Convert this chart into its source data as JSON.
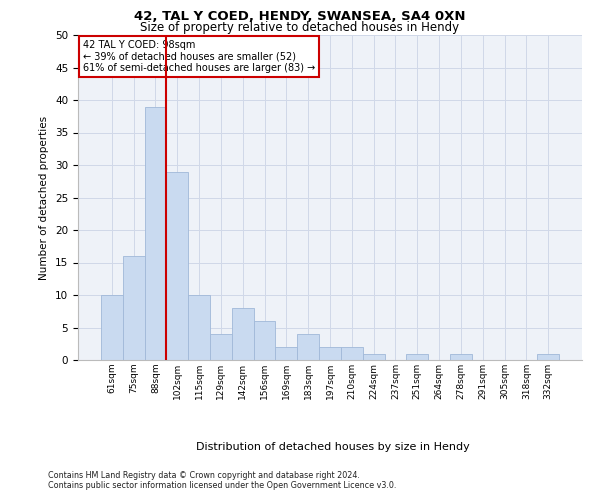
{
  "title1": "42, TAL Y COED, HENDY, SWANSEA, SA4 0XN",
  "title2": "Size of property relative to detached houses in Hendy",
  "xlabel": "Distribution of detached houses by size in Hendy",
  "ylabel": "Number of detached properties",
  "categories": [
    "61sqm",
    "75sqm",
    "88sqm",
    "102sqm",
    "115sqm",
    "129sqm",
    "142sqm",
    "156sqm",
    "169sqm",
    "183sqm",
    "197sqm",
    "210sqm",
    "224sqm",
    "237sqm",
    "251sqm",
    "264sqm",
    "278sqm",
    "291sqm",
    "305sqm",
    "318sqm",
    "332sqm"
  ],
  "values": [
    10,
    16,
    39,
    29,
    10,
    4,
    8,
    6,
    2,
    4,
    2,
    2,
    1,
    0,
    1,
    0,
    1,
    0,
    0,
    0,
    1
  ],
  "bar_color": "#c9daf0",
  "bar_edge_color": "#a0b8d8",
  "bar_width": 1.0,
  "vline_color": "#cc0000",
  "ylim": [
    0,
    50
  ],
  "yticks": [
    0,
    5,
    10,
    15,
    20,
    25,
    30,
    35,
    40,
    45,
    50
  ],
  "annotation_text": "42 TAL Y COED: 98sqm\n← 39% of detached houses are smaller (52)\n61% of semi-detached houses are larger (83) →",
  "annotation_box_color": "#ffffff",
  "annotation_box_edge": "#cc0000",
  "footnote1": "Contains HM Land Registry data © Crown copyright and database right 2024.",
  "footnote2": "Contains public sector information licensed under the Open Government Licence v3.0.",
  "grid_color": "#d0d8e8",
  "bg_color": "#eef2f8"
}
